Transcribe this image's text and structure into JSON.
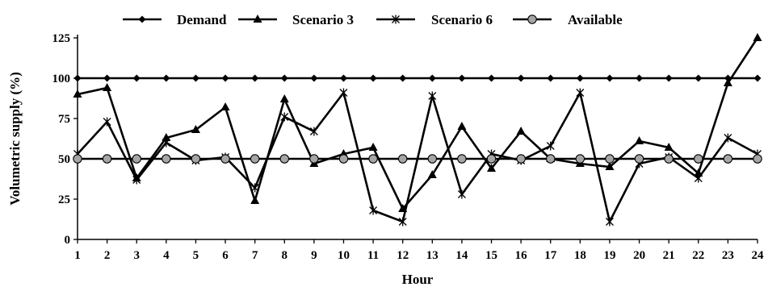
{
  "chart_data": {
    "type": "line",
    "xlabel": "Hour",
    "ylabel": "Volumetric supply (%)",
    "x": [
      1,
      2,
      3,
      4,
      5,
      6,
      7,
      8,
      9,
      10,
      11,
      12,
      13,
      14,
      15,
      16,
      17,
      18,
      19,
      20,
      21,
      22,
      23,
      24
    ],
    "ylim": [
      0,
      125
    ],
    "yticks": [
      0,
      25,
      50,
      75,
      100,
      125
    ],
    "grid": false,
    "legend_position": "top",
    "series": [
      {
        "name": "Demand",
        "marker": "diamond",
        "values": [
          100,
          100,
          100,
          100,
          100,
          100,
          100,
          100,
          100,
          100,
          100,
          100,
          100,
          100,
          100,
          100,
          100,
          100,
          100,
          100,
          100,
          100,
          100,
          100
        ]
      },
      {
        "name": "Scenario 3",
        "marker": "triangle",
        "values": [
          90,
          94,
          38,
          63,
          68,
          82,
          24,
          87,
          47,
          53,
          57,
          19,
          40,
          70,
          44,
          67,
          50,
          47,
          45,
          61,
          57,
          41,
          97,
          125
        ]
      },
      {
        "name": "Scenario 6",
        "marker": "star",
        "values": [
          53,
          73,
          37,
          60,
          49,
          51,
          32,
          76,
          67,
          91,
          18,
          11,
          89,
          28,
          53,
          49,
          58,
          91,
          11,
          47,
          51,
          38,
          63,
          53
        ]
      },
      {
        "name": "Available",
        "marker": "circle",
        "values": [
          50,
          50,
          50,
          50,
          50,
          50,
          50,
          50,
          50,
          50,
          50,
          50,
          50,
          50,
          50,
          50,
          50,
          50,
          50,
          50,
          50,
          50,
          50,
          50
        ]
      }
    ]
  }
}
